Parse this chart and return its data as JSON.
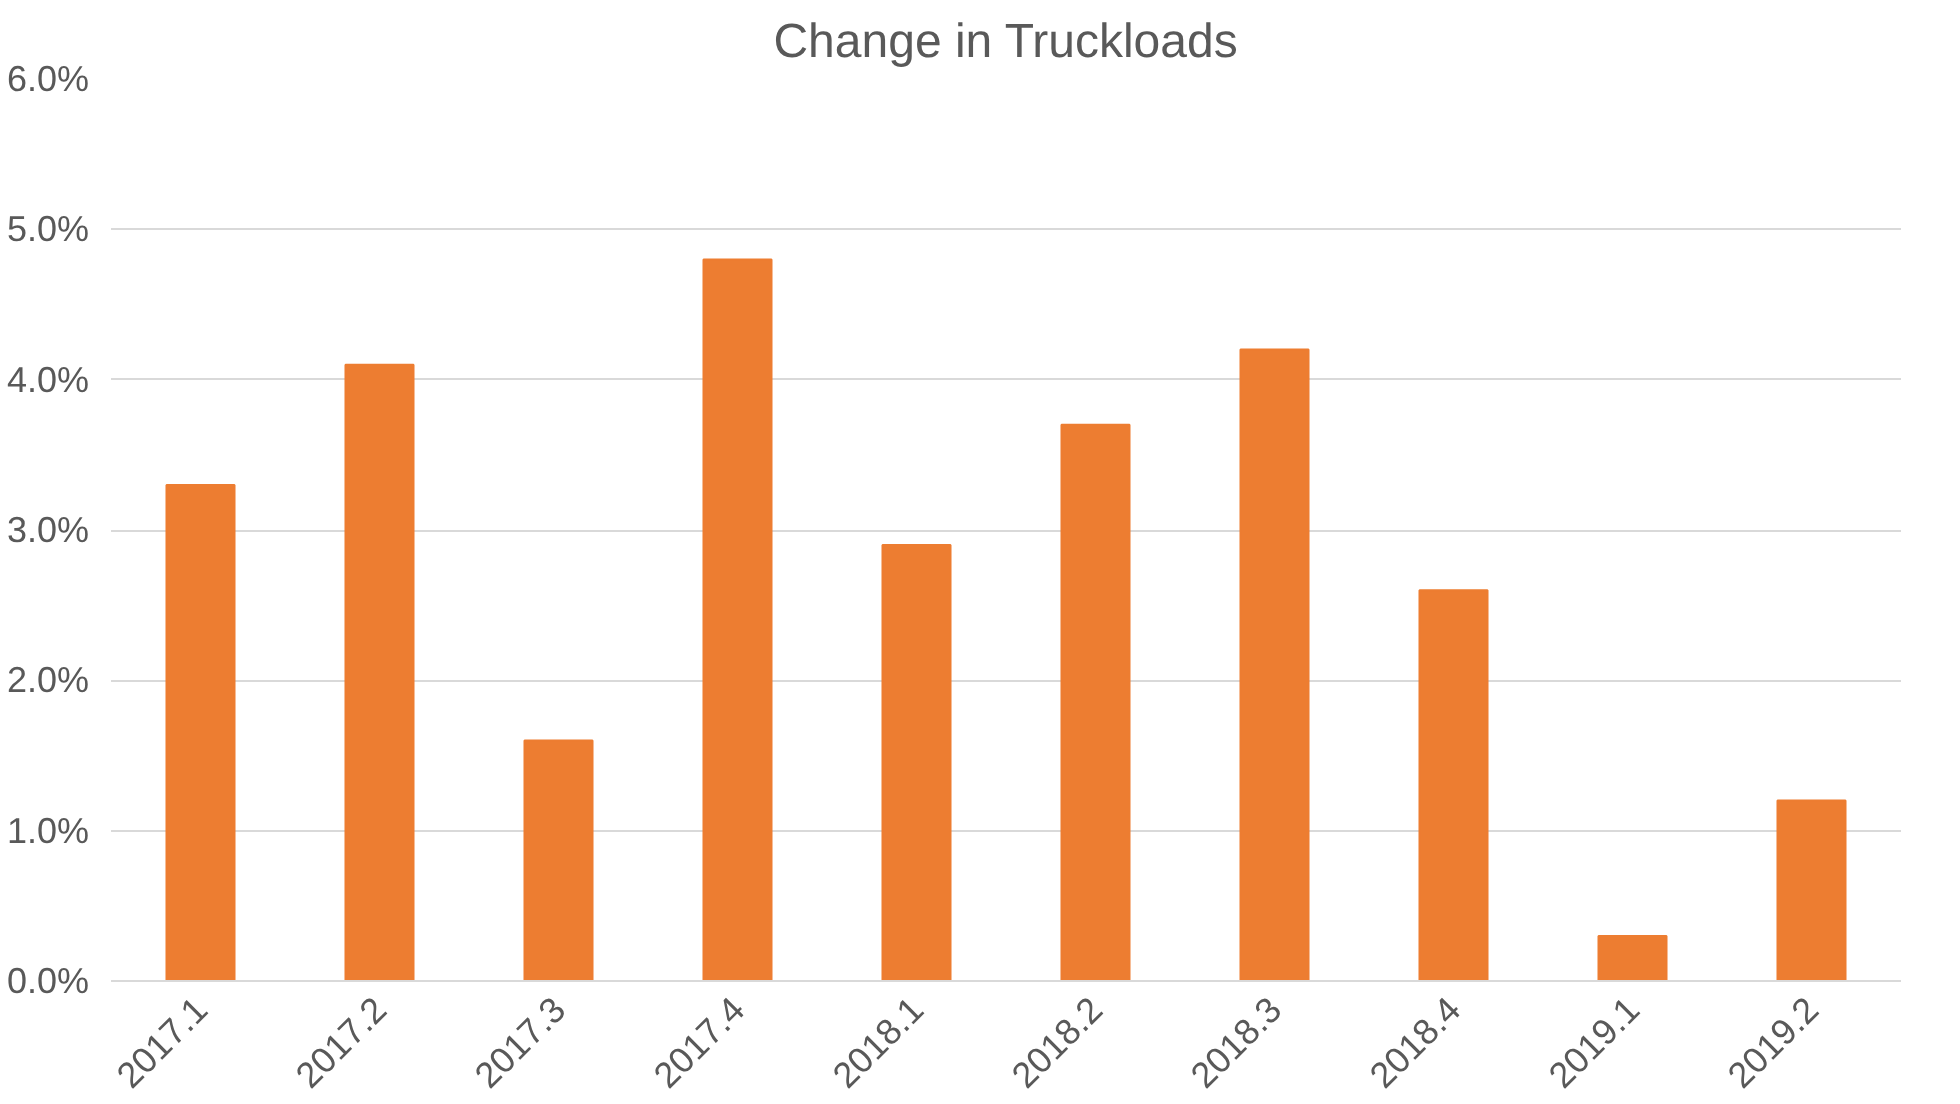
{
  "chart_data": {
    "type": "bar",
    "title": "Change in Truckloads",
    "categories": [
      "2017.1",
      "2017.2",
      "2017.3",
      "2017.4",
      "2018.1",
      "2018.2",
      "2018.3",
      "2018.4",
      "2019.1",
      "2019.2"
    ],
    "values": [
      3.3,
      4.1,
      1.6,
      4.8,
      2.9,
      3.7,
      4.2,
      2.6,
      0.3,
      1.2
    ],
    "color": "#ed7d31",
    "ylim": [
      0,
      6
    ],
    "yticks": [
      {
        "value": 0,
        "label": "0.0%"
      },
      {
        "value": 1,
        "label": "1.0%"
      },
      {
        "value": 2,
        "label": "2.0%"
      },
      {
        "value": 3,
        "label": "3.0%"
      },
      {
        "value": 4,
        "label": "4.0%"
      },
      {
        "value": 5,
        "label": "5.0%"
      },
      {
        "value": 6,
        "label": "6.0%"
      }
    ],
    "grid": "y"
  }
}
